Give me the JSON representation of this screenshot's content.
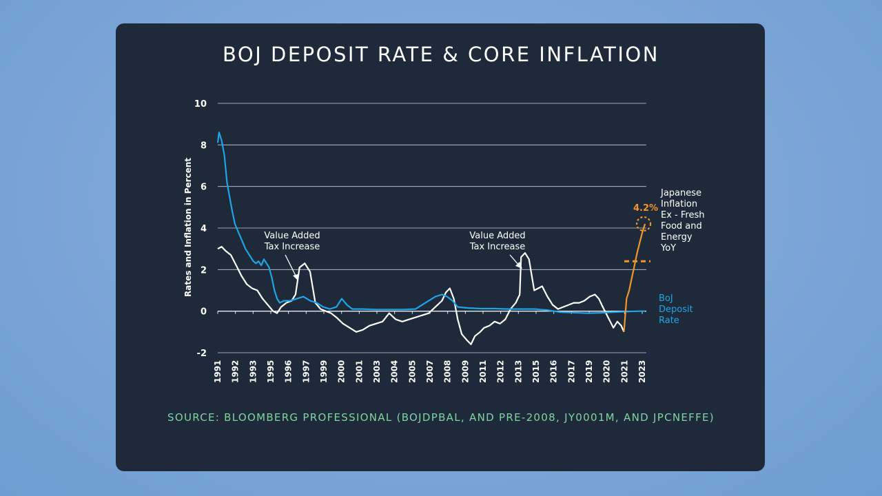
{
  "colors": {
    "background": "#7ba6d6",
    "card": "#1e2a3a",
    "inflation_line": "#ffffff",
    "boj_rate_line": "#1ea5e8",
    "recent_inflation": "#f0962a",
    "source_text": "#7fd4a0"
  },
  "title": "BOJ DEPOSIT RATE & CORE INFLATION",
  "source": "SOURCE: BLOOMBERG PROFESSIONAL (BOJDPBAL, AND PRE-2008, JY0001M, AND JPCNEFFE)",
  "annotations": {
    "vat_1_line1": "Value Added",
    "vat_1_line2": "Tax Increase",
    "vat_2_line1": "Value Added",
    "vat_2_line2": "Tax Increase",
    "peak_label": "4.2%"
  },
  "chart_data": {
    "type": "line",
    "title": "BOJ DEPOSIT RATE & CORE INFLATION",
    "xlabel": "",
    "ylabel": "Rates and Inflation in Percent",
    "ylim": [
      -2,
      10
    ],
    "xlim": [
      1991,
      2023.5
    ],
    "y_ticks": [
      "10",
      "8",
      "6",
      "4",
      "2",
      "0",
      "-2"
    ],
    "x_ticks": [
      "1991",
      "1992",
      "1993",
      "1995",
      "1996",
      "1997",
      "1999",
      "2000",
      "2001",
      "2003",
      "2004",
      "2005",
      "2007",
      "2008",
      "2009",
      "2011",
      "2012",
      "2013",
      "2015",
      "2016",
      "2017",
      "2019",
      "2020",
      "2021",
      "2023"
    ],
    "grid": true,
    "series": [
      {
        "name": "Japanese Inflation Ex - Fresh Food and Energy YoY",
        "label_lines": [
          "Japanese",
          "Inflation",
          "Ex - Fresh",
          "Food and",
          "Energy",
          "YoY"
        ],
        "x": [
          1991.0,
          1991.3,
          1991.6,
          1992.0,
          1992.4,
          1992.8,
          1993.2,
          1993.6,
          1994.0,
          1994.4,
          1994.8,
          1995.2,
          1995.5,
          1995.8,
          1996.2,
          1996.6,
          1996.9,
          1997.2,
          1997.6,
          1998.0,
          1998.4,
          1998.8,
          1999.2,
          1999.6,
          2000.0,
          2000.5,
          2001.0,
          2001.5,
          2002.0,
          2002.5,
          2003.0,
          2003.5,
          2004.0,
          2004.5,
          2005.0,
          2005.5,
          2006.0,
          2006.5,
          2007.0,
          2007.5,
          2008.0,
          2008.3,
          2008.6,
          2008.9,
          2009.2,
          2009.5,
          2009.9,
          2010.2,
          2010.5,
          2010.9,
          2011.2,
          2011.6,
          2012.0,
          2012.4,
          2012.8,
          2013.2,
          2013.6,
          2013.9,
          2014.0,
          2014.3,
          2014.6,
          2015.0,
          2015.3,
          2015.6,
          2016.0,
          2016.4,
          2016.8,
          2017.2,
          2017.6,
          2018.0,
          2018.4,
          2018.8,
          2019.2,
          2019.6,
          2019.9,
          2020.2,
          2020.6,
          2021.0,
          2021.3,
          2021.6,
          2021.8
        ],
        "values": [
          3.0,
          3.1,
          2.9,
          2.7,
          2.2,
          1.7,
          1.3,
          1.1,
          1.0,
          0.6,
          0.3,
          0.0,
          -0.1,
          0.2,
          0.4,
          0.5,
          0.8,
          2.1,
          2.3,
          1.9,
          0.4,
          0.1,
          0.0,
          -0.1,
          -0.3,
          -0.6,
          -0.8,
          -1.0,
          -0.9,
          -0.7,
          -0.6,
          -0.5,
          -0.1,
          -0.4,
          -0.5,
          -0.4,
          -0.3,
          -0.2,
          -0.1,
          0.2,
          0.5,
          0.9,
          1.1,
          0.6,
          -0.4,
          -1.1,
          -1.4,
          -1.6,
          -1.2,
          -1.0,
          -0.8,
          -0.7,
          -0.5,
          -0.6,
          -0.4,
          0.1,
          0.4,
          0.8,
          2.6,
          2.8,
          2.5,
          1.0,
          1.1,
          1.2,
          0.7,
          0.3,
          0.1,
          0.2,
          0.3,
          0.4,
          0.4,
          0.5,
          0.7,
          0.8,
          0.6,
          0.2,
          -0.3,
          -0.8,
          -0.5,
          -0.7,
          -1.0
        ]
      },
      {
        "name": "Japanese Inflation Ex - Fresh Food and Energy YoY (recent)",
        "x": [
          2021.8,
          2022.0,
          2022.2,
          2022.4,
          2022.6,
          2022.8,
          2023.0,
          2023.2,
          2023.4
        ],
        "values": [
          -1.0,
          0.6,
          1.0,
          1.6,
          2.2,
          2.8,
          3.3,
          3.8,
          4.2
        ]
      },
      {
        "name": "BoJ Deposit Rate",
        "label_lines": [
          "BoJ",
          "Deposit",
          "Rate"
        ],
        "x": [
          1991.0,
          1991.1,
          1991.3,
          1991.5,
          1991.7,
          1991.9,
          1992.1,
          1992.3,
          1992.5,
          1992.7,
          1992.9,
          1993.1,
          1993.3,
          1993.5,
          1993.7,
          1993.9,
          1994.1,
          1994.3,
          1994.5,
          1994.7,
          1994.9,
          1995.1,
          1995.3,
          1995.5,
          1995.7,
          1996.0,
          1996.5,
          1997.0,
          1997.5,
          1998.0,
          1998.5,
          1999.0,
          1999.5,
          2000.0,
          2000.4,
          2000.8,
          2001.2,
          2002.0,
          2003.0,
          2004.0,
          2005.0,
          2006.0,
          2006.5,
          2007.0,
          2007.5,
          2008.0,
          2008.4,
          2008.8,
          2009.2,
          2010.0,
          2011.0,
          2012.0,
          2013.0,
          2014.0,
          2015.0,
          2016.0,
          2017.0,
          2018.0,
          2019.0,
          2020.0,
          2021.0,
          2022.0,
          2023.0,
          2023.4
        ],
        "values": [
          8.1,
          8.6,
          8.2,
          7.5,
          6.2,
          5.5,
          4.8,
          4.2,
          3.9,
          3.6,
          3.3,
          3.0,
          2.8,
          2.6,
          2.4,
          2.3,
          2.4,
          2.2,
          2.5,
          2.3,
          2.1,
          1.6,
          1.0,
          0.6,
          0.4,
          0.5,
          0.5,
          0.6,
          0.7,
          0.5,
          0.4,
          0.2,
          0.1,
          0.2,
          0.6,
          0.3,
          0.1,
          0.1,
          0.08,
          0.08,
          0.08,
          0.1,
          0.3,
          0.5,
          0.7,
          0.8,
          0.7,
          0.5,
          0.2,
          0.15,
          0.12,
          0.12,
          0.1,
          0.1,
          0.1,
          0.05,
          -0.05,
          -0.07,
          -0.1,
          -0.08,
          -0.05,
          -0.02,
          0.0,
          0.0
        ]
      }
    ]
  }
}
